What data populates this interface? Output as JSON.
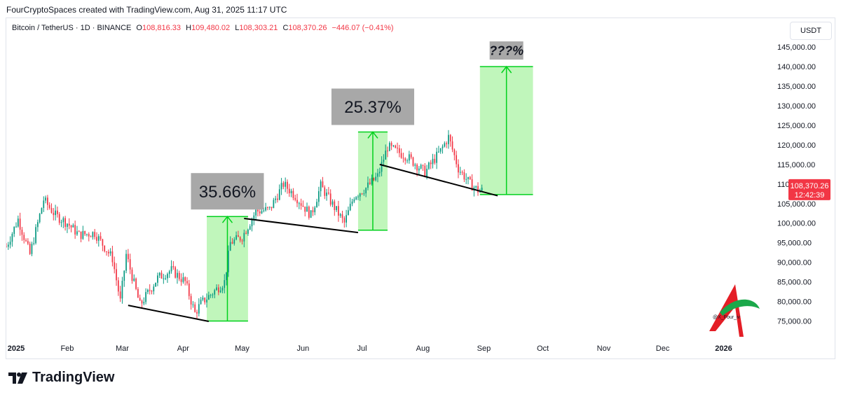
{
  "header": {
    "caption": "FourCryptoSpaces created with TradingView.com, Aug 31, 2025 11:17 UTC"
  },
  "legend": {
    "symbol": "Bitcoin / TetherUS · 1D · BINANCE",
    "open_label": "O",
    "open": "108,816.33",
    "high_label": "H",
    "high": "109,480.02",
    "low_label": "L",
    "low": "108,303.21",
    "close_label": "C",
    "close": "108,370.26",
    "change": "−446.07 (−0.41%)"
  },
  "currency_button": "USDT",
  "price_tag": {
    "price": "108,370.26",
    "countdown": "12:42:39"
  },
  "footer": {
    "brand": "TradingView"
  },
  "watermark": {
    "handle": "@X_Four_iv"
  },
  "colors": {
    "up": "#089981",
    "down": "#f23645",
    "box_fill": "#b9f5b4",
    "box_edge": "#00d11c",
    "label_bg": "#a8a8a8"
  },
  "chart_data": {
    "type": "candlestick",
    "x_axis": [
      "2025",
      "Feb",
      "Mar",
      "Apr",
      "May",
      "Jun",
      "Jul",
      "Aug",
      "Sep",
      "Oct",
      "Nov",
      "Dec",
      "2026"
    ],
    "x_axis_dates": [
      "2025-01-01",
      "2025-02-01",
      "2025-03-01",
      "2025-04-01",
      "2025-05-01",
      "2025-06-01",
      "2025-07-01",
      "2025-08-01",
      "2025-09-01",
      "2025-10-01",
      "2025-11-01",
      "2025-12-01",
      "2026-01-01"
    ],
    "y_ticks": [
      "75,000.00",
      "80,000.00",
      "85,000.00",
      "90,000.00",
      "95,000.00",
      "100,000.00",
      "105,000.00",
      "110,000.00",
      "115,000.00",
      "120,000.00",
      "125,000.00",
      "130,000.00",
      "135,000.00",
      "140,000.00",
      "145,000.00"
    ],
    "y_tick_values": [
      75000,
      80000,
      85000,
      90000,
      95000,
      100000,
      105000,
      110000,
      115000,
      120000,
      125000,
      130000,
      135000,
      140000,
      145000
    ],
    "ylim": [
      69000,
      147000
    ],
    "xlim": [
      "2025-01-01",
      "2026-01-24"
    ],
    "price_path": [
      [
        "2025-01-01",
        94000
      ],
      [
        "2025-01-07",
        101000
      ],
      [
        "2025-01-13",
        92000
      ],
      [
        "2025-01-20",
        106000
      ],
      [
        "2025-01-26",
        102000
      ],
      [
        "2025-02-01",
        100000
      ],
      [
        "2025-02-07",
        97000
      ],
      [
        "2025-02-15",
        97500
      ],
      [
        "2025-02-24",
        91000
      ],
      [
        "2025-02-28",
        80000
      ],
      [
        "2025-03-03",
        92000
      ],
      [
        "2025-03-10",
        79000
      ],
      [
        "2025-03-19",
        86000
      ],
      [
        "2025-03-26",
        88000
      ],
      [
        "2025-04-02",
        85000
      ],
      [
        "2025-04-07",
        77000
      ],
      [
        "2025-04-10",
        79500
      ],
      [
        "2025-04-22",
        85000
      ],
      [
        "2025-04-25",
        95000
      ],
      [
        "2025-05-01",
        96500
      ],
      [
        "2025-05-08",
        103000
      ],
      [
        "2025-05-15",
        103500
      ],
      [
        "2025-05-22",
        110000
      ],
      [
        "2025-05-28",
        107000
      ],
      [
        "2025-06-05",
        102000
      ],
      [
        "2025-06-10",
        109500
      ],
      [
        "2025-06-17",
        104000
      ],
      [
        "2025-06-22",
        100000
      ],
      [
        "2025-06-27",
        107000
      ],
      [
        "2025-07-03",
        109000
      ],
      [
        "2025-07-09",
        112000
      ],
      [
        "2025-07-14",
        119500
      ],
      [
        "2025-07-24",
        117000
      ],
      [
        "2025-08-02",
        113000
      ],
      [
        "2025-08-10",
        118500
      ],
      [
        "2025-08-14",
        122000
      ],
      [
        "2025-08-19",
        114000
      ],
      [
        "2025-08-25",
        110000
      ],
      [
        "2025-08-29",
        108400
      ],
      [
        "2025-08-31",
        108370
      ]
    ],
    "trendlines": [
      {
        "from": [
          "2025-03-04",
          79000
        ],
        "to": [
          "2025-04-14",
          74900
        ]
      },
      {
        "from": [
          "2025-05-02",
          101200
        ],
        "to": [
          "2025-06-29",
          97600
        ]
      },
      {
        "from": [
          "2025-07-10",
          115000
        ],
        "to": [
          "2025-09-08",
          107000
        ]
      }
    ],
    "boxes": [
      {
        "x0": "2025-04-13",
        "x1": "2025-05-04",
        "y0": 75000,
        "y1": 101700,
        "label": "35.66%"
      },
      {
        "x0": "2025-06-29",
        "x1": "2025-07-14",
        "y0": 98200,
        "y1": 123300,
        "label": "25.37%"
      },
      {
        "x0": "2025-08-30",
        "x1": "2025-09-26",
        "y0": 107300,
        "y1": 140000,
        "label": "???%"
      }
    ],
    "last_price": 108370.26
  }
}
